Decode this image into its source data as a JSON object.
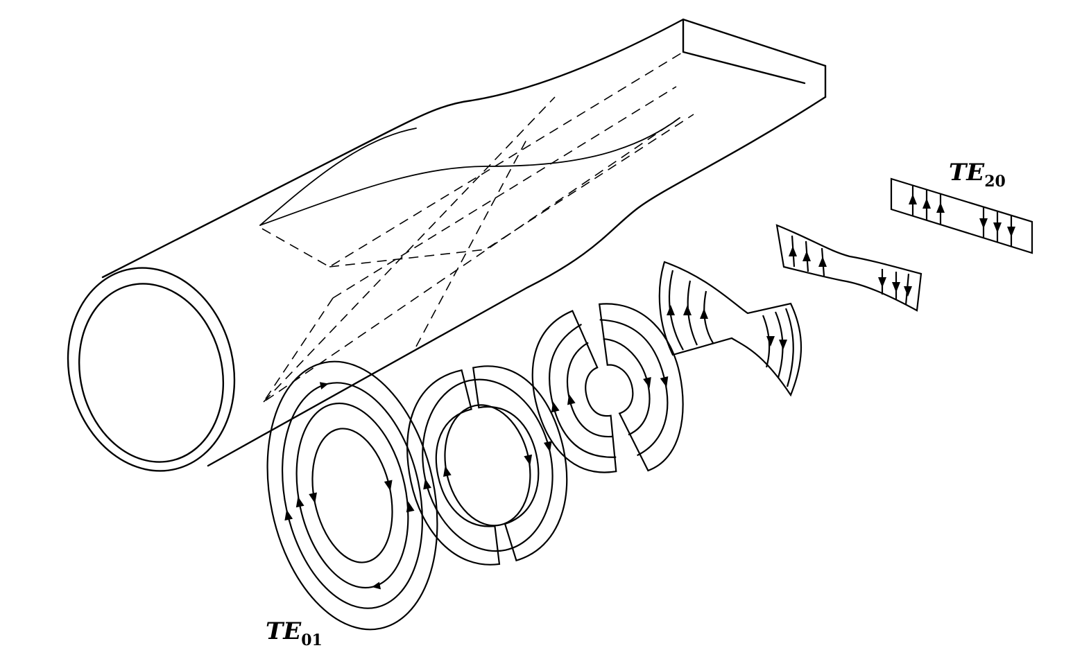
{
  "labels": {
    "start_mode": {
      "main": "TE",
      "sub": "01"
    },
    "end_mode": {
      "main": "TE",
      "sub": "20"
    }
  }
}
